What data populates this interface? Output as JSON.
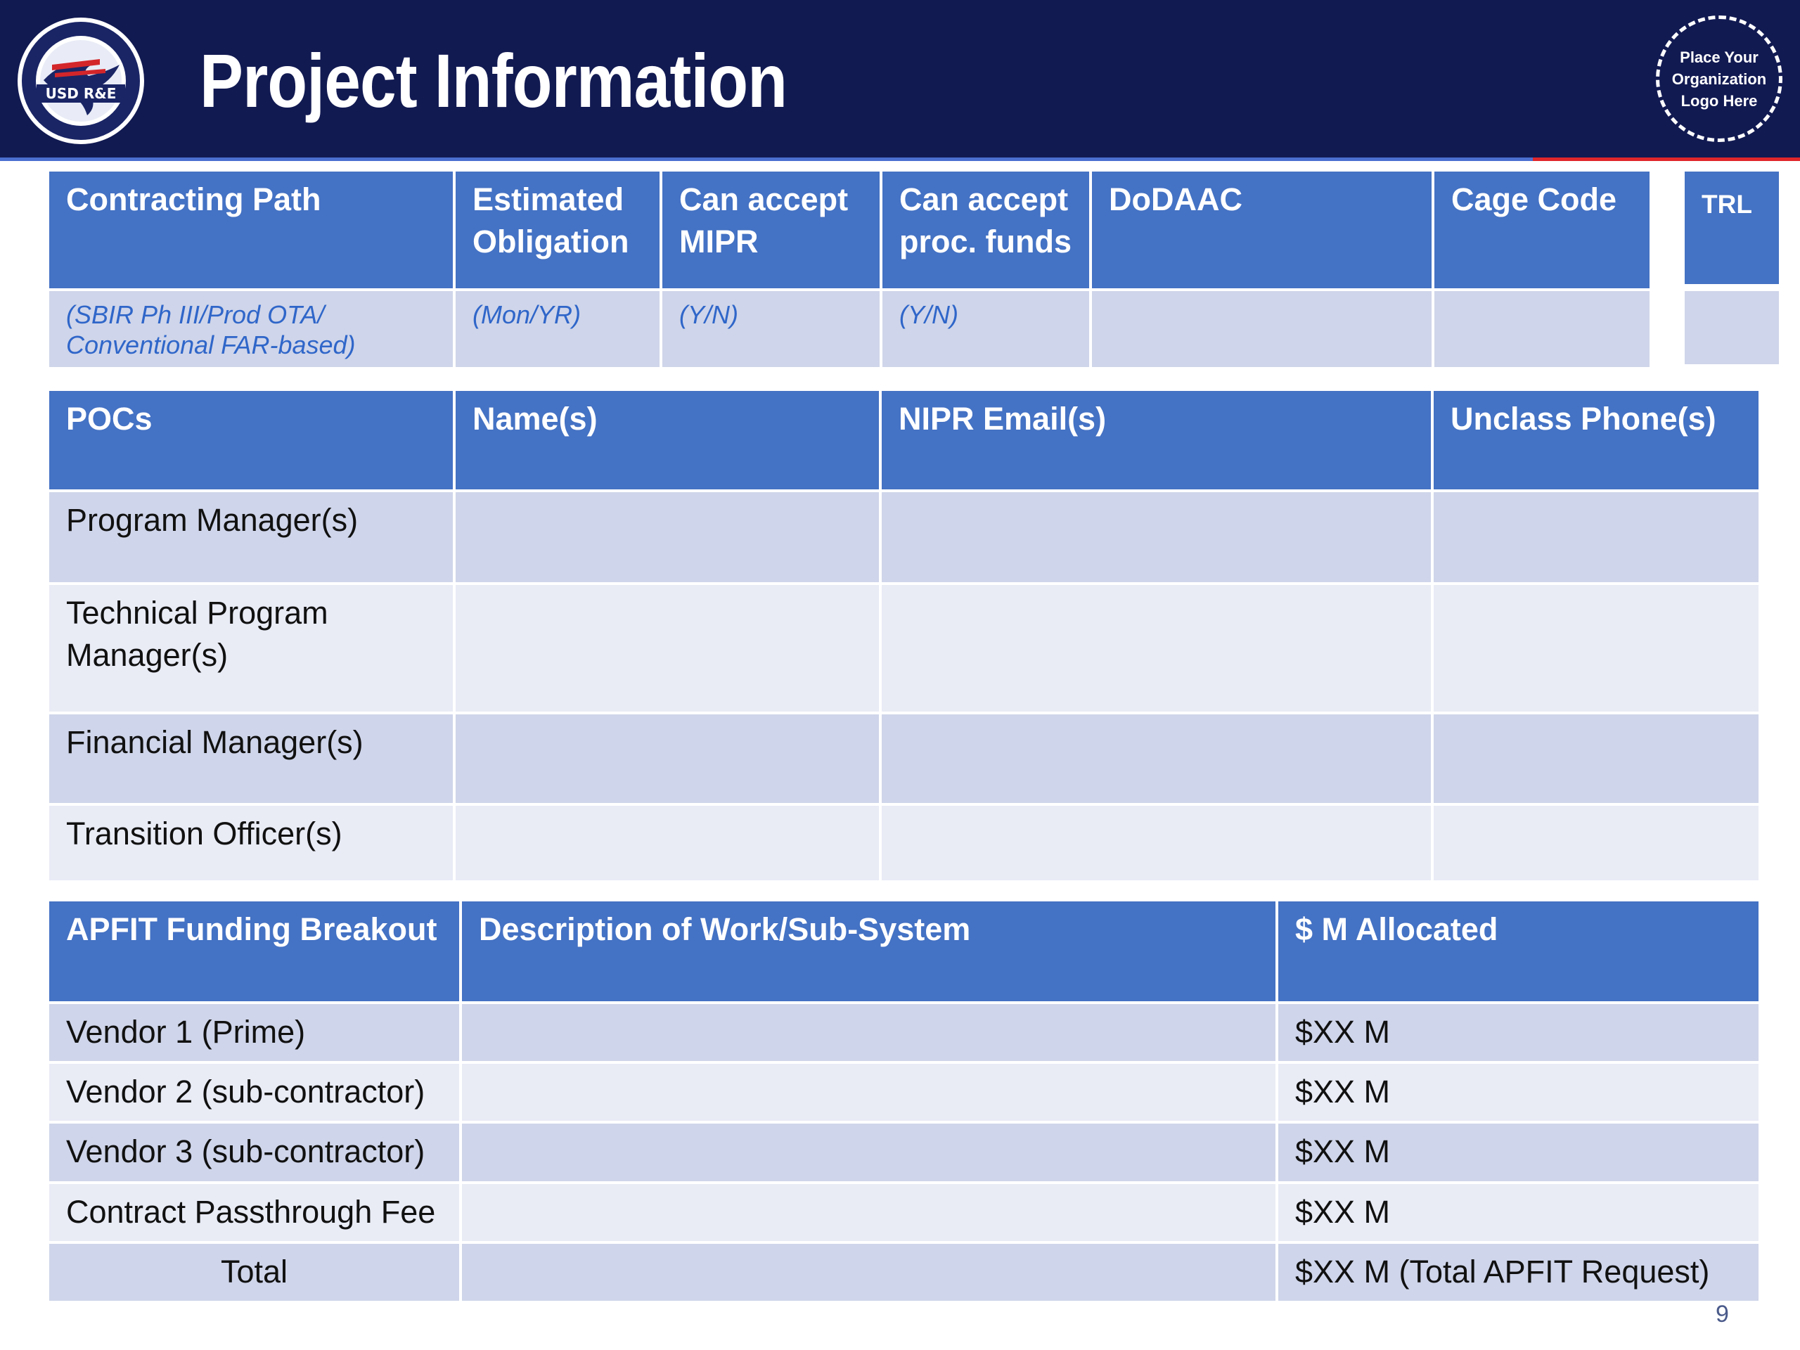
{
  "header": {
    "title": "Project Information",
    "seal_text": "USD R&E",
    "logo_placeholder": "Place Your\nOrganization\nLogo Here"
  },
  "contracting_table": {
    "headers": [
      "Contracting Path",
      "Estimated\nObligation",
      "Can accept\nMIPR",
      "Can accept\nproc. funds",
      "DoDAAC",
      "Cage Code"
    ],
    "hints": [
      "(SBIR Ph III/Prod OTA/\nConventional FAR-based)",
      "(Mon/YR)",
      "(Y/N)",
      " (Y/N)",
      "",
      ""
    ]
  },
  "trl": {
    "label": "TRL",
    "value": ""
  },
  "poc_table": {
    "headers": [
      "POCs",
      "Name(s)",
      "NIPR Email(s)",
      "Unclass Phone(s)"
    ],
    "rows": [
      "Program Manager(s)",
      "Technical Program\nManager(s)",
      "Financial Manager(s)",
      "Transition Officer(s)"
    ]
  },
  "funding_table": {
    "headers": [
      "APFIT Funding Breakout",
      "Description of Work/Sub-System",
      "$ M Allocated"
    ],
    "rows": [
      {
        "label": "Vendor 1 (Prime)",
        "description": "",
        "allocated": "$XX M"
      },
      {
        "label": "Vendor 2 (sub-contractor)",
        "description": "",
        "allocated": "$XX M"
      },
      {
        "label": "Vendor 3 (sub-contractor)",
        "description": "",
        "allocated": "$XX M"
      },
      {
        "label": "Contract Passthrough Fee",
        "description": "",
        "allocated": "$XX M"
      },
      {
        "label": "Total",
        "description": "",
        "allocated": "$XX M (Total APFIT Request)"
      }
    ]
  },
  "page_number": "9",
  "colors": {
    "header_bg": "#121a52",
    "table_header": "#4472c4",
    "row_dark": "#cfd5ea",
    "row_light": "#e9ebf5",
    "hint_text": "#2f66c9"
  }
}
